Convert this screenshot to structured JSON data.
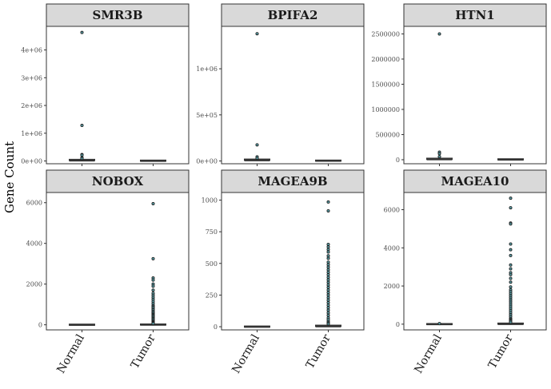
{
  "y_axis_title": "Gene Count",
  "chart_data": [
    {
      "type": "box",
      "title": "SMR3B",
      "categories": [
        "Normal",
        "Tumor"
      ],
      "ylim": [
        -100000,
        4850000
      ],
      "ticks": [
        0,
        1000000,
        2000000,
        3000000,
        4000000
      ],
      "tick_labels": [
        "0e+00",
        "1e+06",
        "2e+06",
        "3e+06",
        "4e+06"
      ],
      "series": [
        {
          "name": "Normal",
          "box": [
            0,
            10000,
            20000,
            40000,
            60000
          ],
          "outliers": [
            4630000,
            1280000,
            230000,
            210000,
            120000,
            90000
          ]
        },
        {
          "name": "Tumor",
          "box": [
            0,
            3000,
            6000,
            12000,
            20000
          ],
          "outliers": []
        }
      ]
    },
    {
      "type": "box",
      "title": "BPIFA2",
      "categories": [
        "Normal",
        "Tumor"
      ],
      "ylim": [
        -30000,
        1460000
      ],
      "ticks": [
        0,
        500000,
        1000000
      ],
      "tick_labels": [
        "0e+00",
        "5e+05",
        "1e+06"
      ],
      "series": [
        {
          "name": "Normal",
          "box": [
            0,
            4000,
            8000,
            15000,
            22000
          ],
          "outliers": [
            1380000,
            175000,
            45000,
            30000
          ]
        },
        {
          "name": "Tumor",
          "box": [
            0,
            1000,
            2000,
            4000,
            6000
          ],
          "outliers": []
        }
      ]
    },
    {
      "type": "box",
      "title": "HTN1",
      "categories": [
        "Normal",
        "Tumor"
      ],
      "ylim": [
        -80000,
        2650000
      ],
      "ticks": [
        0,
        500000,
        1000000,
        1500000,
        2000000,
        2500000
      ],
      "tick_labels": [
        "0",
        "500000",
        "1000000",
        "1500000",
        "2000000",
        "2500000"
      ],
      "series": [
        {
          "name": "Normal",
          "box": [
            0,
            5000,
            10000,
            20000,
            30000
          ],
          "outliers": [
            2500000,
            150000,
            120000,
            60000
          ]
        },
        {
          "name": "Tumor",
          "box": [
            0,
            2000,
            4000,
            8000,
            12000
          ],
          "outliers": []
        }
      ]
    },
    {
      "type": "box",
      "title": "NOBOX",
      "categories": [
        "Normal",
        "Tumor"
      ],
      "ylim": [
        -250,
        6500
      ],
      "ticks": [
        0,
        2000,
        4000,
        6000
      ],
      "tick_labels": [
        "0",
        "2000",
        "4000",
        "6000"
      ],
      "series": [
        {
          "name": "Normal",
          "box": [
            0,
            0,
            0,
            5,
            10
          ],
          "outliers": []
        },
        {
          "name": "Tumor",
          "box": [
            0,
            2,
            5,
            15,
            35
          ],
          "outliers": [
            5950,
            3250,
            2300,
            2200,
            2000,
            1900,
            1700,
            1550,
            1450,
            1350,
            1250,
            1150,
            1050,
            950,
            900,
            850,
            780,
            720,
            650,
            600,
            550,
            500,
            450,
            400,
            350,
            300,
            250,
            200,
            150,
            120,
            90,
            60
          ]
        }
      ]
    },
    {
      "type": "box",
      "title": "MAGEA9B",
      "categories": [
        "Normal",
        "Tumor"
      ],
      "ylim": [
        -25,
        1060
      ],
      "ticks": [
        0,
        250,
        500,
        750,
        1000
      ],
      "tick_labels": [
        "0",
        "250",
        "500",
        "750",
        "1000"
      ],
      "series": [
        {
          "name": "Normal",
          "box": [
            0,
            0,
            0,
            1,
            2
          ],
          "outliers": []
        },
        {
          "name": "Tumor",
          "box": [
            0,
            1,
            3,
            8,
            15
          ],
          "outliers": [
            985,
            915,
            650,
            630,
            610,
            590,
            560,
            540,
            510,
            490,
            470,
            450,
            430,
            410,
            390,
            370,
            350,
            330,
            310,
            290,
            270,
            250,
            230,
            210,
            190,
            170,
            150,
            130,
            110,
            90,
            70,
            55,
            40,
            30,
            22
          ]
        }
      ]
    },
    {
      "type": "box",
      "title": "MAGEA10",
      "categories": [
        "Normal",
        "Tumor"
      ],
      "ylim": [
        -300,
        6900
      ],
      "ticks": [
        0,
        2000,
        4000,
        6000
      ],
      "tick_labels": [
        "0",
        "2000",
        "4000",
        "6000"
      ],
      "series": [
        {
          "name": "Normal",
          "box": [
            0,
            0,
            0,
            5,
            10
          ],
          "outliers": [
            30
          ]
        },
        {
          "name": "Tumor",
          "box": [
            0,
            3,
            10,
            30,
            60
          ],
          "outliers": [
            6600,
            6100,
            5300,
            5250,
            4200,
            3900,
            3600,
            3100,
            2900,
            2700,
            2600,
            2400,
            2200,
            1950,
            1800,
            1700,
            1600,
            1500,
            1400,
            1300,
            1200,
            1100,
            1000,
            900,
            800,
            700,
            600,
            500,
            400,
            300,
            250,
            200,
            150,
            100
          ]
        }
      ]
    }
  ]
}
